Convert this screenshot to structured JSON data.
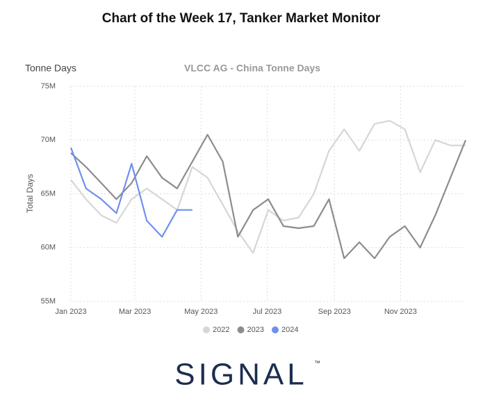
{
  "chart_data": {
    "type": "line",
    "title": "Chart of the Week 17, Tanker Market Monitor",
    "subtitle": "VLCC AG - China Tonne Days",
    "annotation": "Tonne Days",
    "y_label": "Total Days",
    "x": [
      0,
      14,
      28,
      42,
      56,
      70,
      84,
      98,
      112,
      126,
      140,
      154,
      168,
      182,
      196,
      210,
      224,
      238,
      252,
      266,
      280,
      294,
      308,
      322,
      336,
      350,
      364
    ],
    "xlim": [
      0,
      364
    ],
    "xticks": [
      {
        "value": 0,
        "label": "Jan 2023"
      },
      {
        "value": 59,
        "label": "Mar 2023"
      },
      {
        "value": 120,
        "label": "May 2023"
      },
      {
        "value": 181,
        "label": "Jul 2023"
      },
      {
        "value": 243,
        "label": "Sep 2023"
      },
      {
        "value": 304,
        "label": "Nov 2023"
      }
    ],
    "ylim": [
      55000000,
      75000000
    ],
    "yticks": [
      {
        "value": 55000000,
        "label": "55M"
      },
      {
        "value": 60000000,
        "label": "60M"
      },
      {
        "value": 65000000,
        "label": "65M"
      },
      {
        "value": 70000000,
        "label": "70M"
      },
      {
        "value": 75000000,
        "label": "75M"
      }
    ],
    "grid": true,
    "legend": "bottom",
    "series": [
      {
        "name": "2022",
        "color": "#d6d6d6",
        "values": [
          66300000,
          64500000,
          63000000,
          62300000,
          64500000,
          65500000,
          64500000,
          63500000,
          67500000,
          66500000,
          64000000,
          61500000,
          59500000,
          63500000,
          62500000,
          62800000,
          65000000,
          69000000,
          71000000,
          69000000,
          71500000,
          71800000,
          71000000,
          67000000,
          70000000,
          69500000,
          69500000
        ]
      },
      {
        "name": "2023",
        "color": "#8c8c8c",
        "values": [
          68800000,
          67500000,
          66000000,
          64500000,
          66000000,
          68500000,
          66500000,
          65500000,
          68000000,
          70500000,
          68000000,
          61000000,
          63500000,
          64500000,
          62000000,
          61800000,
          62000000,
          64500000,
          59000000,
          60500000,
          59000000,
          61000000,
          62000000,
          60000000,
          63000000,
          66500000,
          70000000
        ]
      },
      {
        "name": "2024",
        "color": "#6f8ff0",
        "values": [
          69300000,
          65500000,
          64500000,
          63200000,
          67800000,
          62500000,
          61000000,
          63500000,
          63500000,
          null,
          null,
          null,
          null,
          null,
          null,
          null,
          null,
          null,
          null,
          null,
          null,
          null,
          null,
          null,
          null,
          null,
          null
        ]
      }
    ]
  },
  "logo": "SIGNAL",
  "trademark": "™"
}
